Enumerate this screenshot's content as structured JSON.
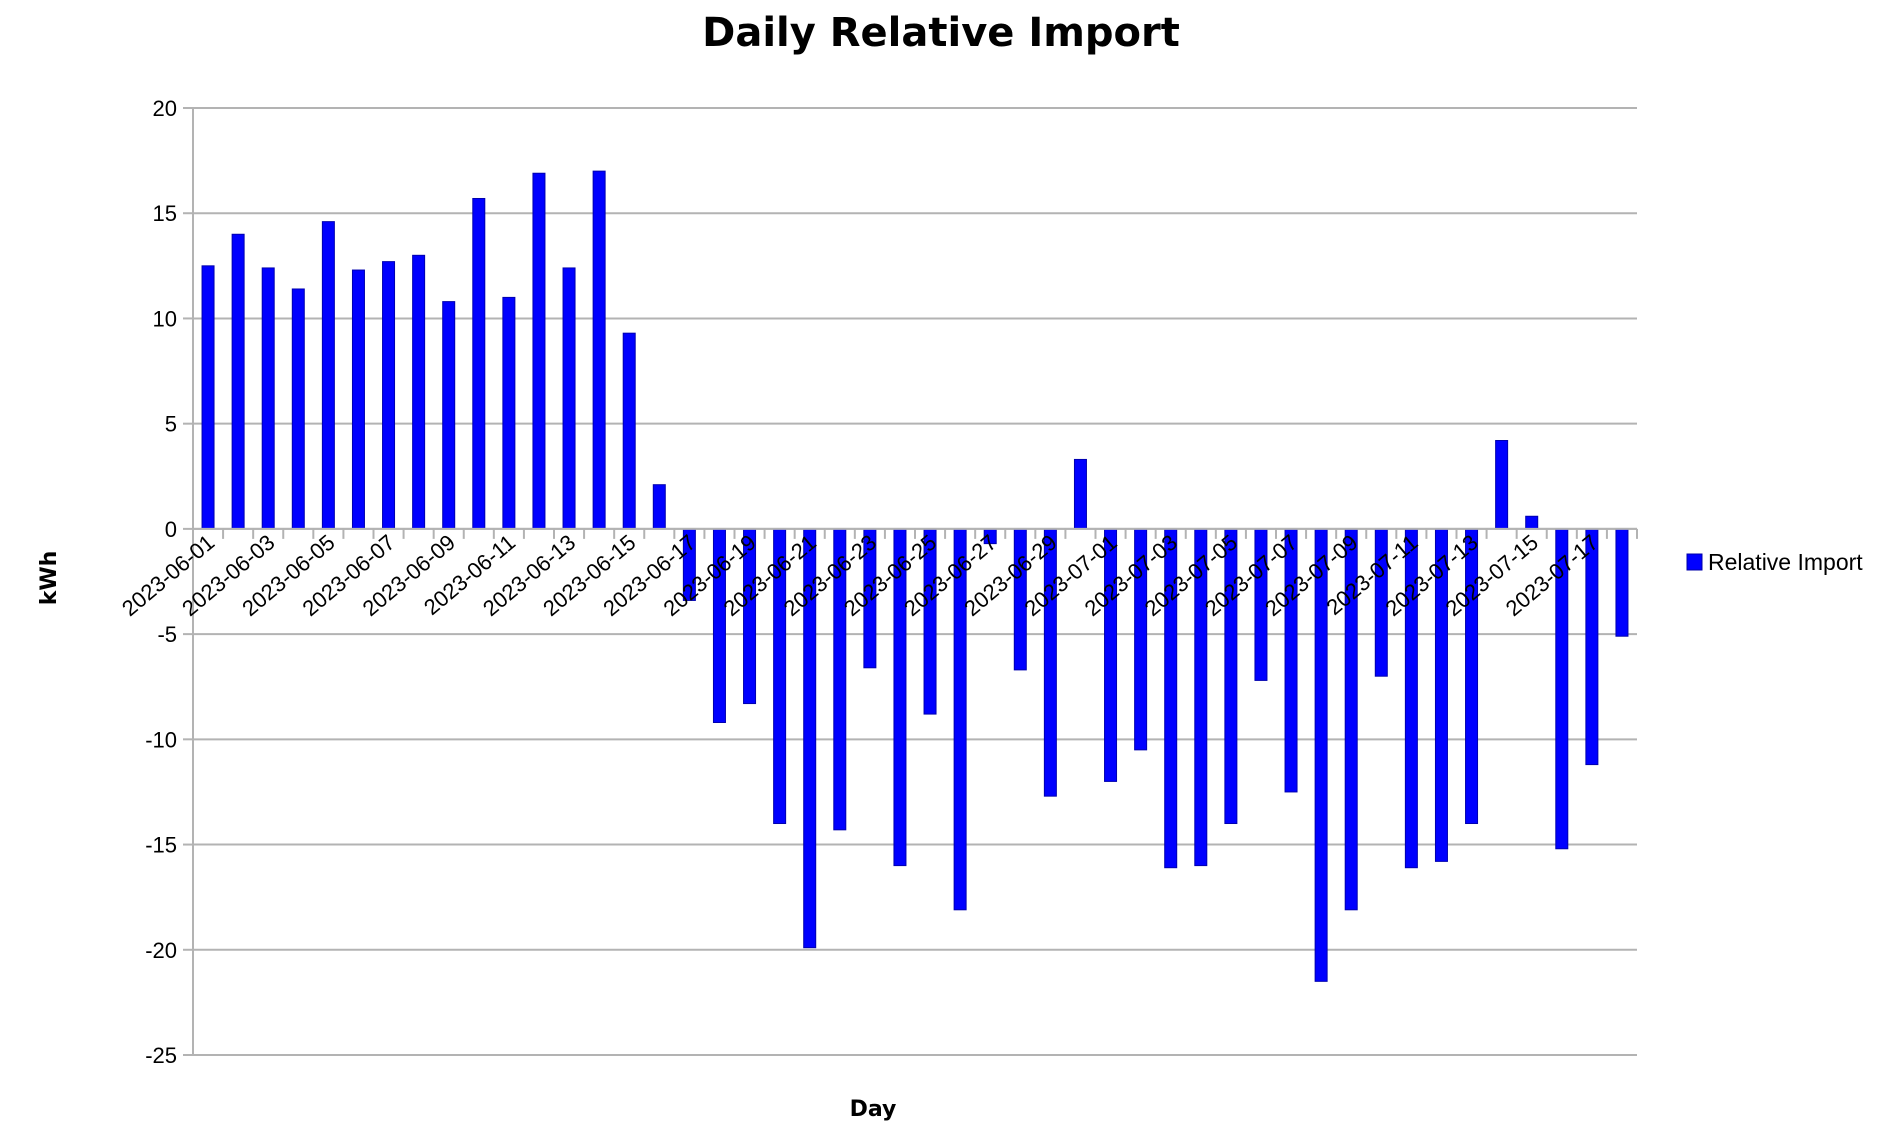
{
  "chart_data": {
    "type": "bar",
    "title": "Daily Relative Import",
    "xlabel": "Day",
    "ylabel": "kWh",
    "ylim": [
      -25,
      20
    ],
    "yticks": [
      20,
      15,
      10,
      5,
      0,
      -5,
      -10,
      -15,
      -20,
      -25
    ],
    "grid": true,
    "legend_position": "right",
    "series": [
      {
        "name": "Relative Import",
        "color": "#0000ff",
        "values": [
          12.5,
          14.0,
          12.4,
          11.4,
          14.6,
          12.3,
          12.7,
          13.0,
          10.8,
          15.7,
          11.0,
          16.9,
          12.4,
          17.0,
          9.3,
          2.1,
          -3.4,
          -9.2,
          -8.3,
          -14.0,
          -19.9,
          -14.3,
          -6.6,
          -16.0,
          -8.8,
          -18.1,
          -0.7,
          -6.7,
          -12.7,
          3.3,
          -12.0,
          -10.5,
          -16.1,
          -16.0,
          -14.0,
          -7.2,
          -12.5,
          -21.5,
          -18.1,
          -7.0,
          -16.1,
          -15.8,
          -14.0,
          4.2,
          0.6,
          -15.2,
          -11.2,
          -5.1
        ]
      }
    ],
    "categories": [
      "2023-06-01",
      "2023-06-02",
      "2023-06-03",
      "2023-06-04",
      "2023-06-05",
      "2023-06-06",
      "2023-06-07",
      "2023-06-08",
      "2023-06-09",
      "2023-06-10",
      "2023-06-11",
      "2023-06-12",
      "2023-06-13",
      "2023-06-14",
      "2023-06-15",
      "2023-06-16",
      "2023-06-17",
      "2023-06-18",
      "2023-06-19",
      "2023-06-20",
      "2023-06-21",
      "2023-06-22",
      "2023-06-23",
      "2023-06-24",
      "2023-06-25",
      "2023-06-26",
      "2023-06-27",
      "2023-06-28",
      "2023-06-29",
      "2023-06-30",
      "2023-07-01",
      "2023-07-02",
      "2023-07-03",
      "2023-07-04",
      "2023-07-05",
      "2023-07-06",
      "2023-07-07",
      "2023-07-08",
      "2023-07-09",
      "2023-07-10",
      "2023-07-11",
      "2023-07-12",
      "2023-07-13",
      "2023-07-14",
      "2023-07-15",
      "2023-07-16",
      "2023-07-17",
      "2023-07-18"
    ],
    "shown_tick_labels": [
      "2023-06-01",
      "2023-06-03",
      "2023-06-05",
      "2023-06-07",
      "2023-06-09",
      "2023-06-11",
      "2023-06-13",
      "2023-06-15",
      "2023-06-17",
      "2023-06-19",
      "2023-06-21",
      "2023-06-23",
      "2023-06-25",
      "2023-06-27",
      "2023-06-29",
      "2023-07-01",
      "2023-07-03",
      "2023-07-05",
      "2023-07-07",
      "2023-07-09",
      "2023-07-11",
      "2023-07-13",
      "2023-07-15",
      "2023-07-17"
    ]
  }
}
